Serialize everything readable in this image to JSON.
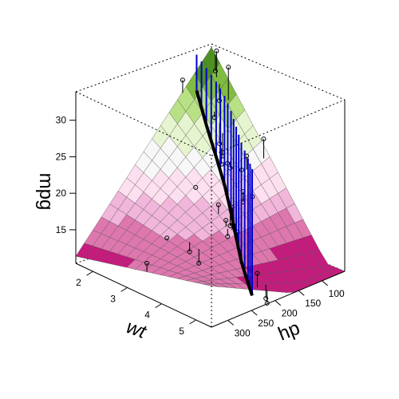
{
  "chart_data": {
    "type": "surface3d",
    "title": "",
    "axes": {
      "x": {
        "label": "wt",
        "ticks": [
          "2",
          "3",
          "4",
          "5"
        ],
        "range": [
          1.5,
          5.45
        ]
      },
      "y": {
        "label": "hp",
        "ticks": [
          "100",
          "150",
          "200",
          "250",
          "300"
        ],
        "range": [
          52,
          335
        ]
      },
      "z": {
        "label": "mpg",
        "ticks": [
          "15",
          "20",
          "25",
          "30"
        ],
        "range": [
          10.4,
          33.9
        ]
      }
    },
    "surface_grid": {
      "rows": 16,
      "cols": 16
    },
    "surface_palette": [
      "#c51b7d",
      "#de77ae",
      "#f1b6da",
      "#fde0ef",
      "#f7f7f7",
      "#e6f5d0",
      "#b8e186",
      "#7fbc41",
      "#4d9221"
    ],
    "line_color": "#000000",
    "drop_line_color": "#0000cc",
    "box": "full",
    "points": [
      {
        "wt": 2.62,
        "hp": 110,
        "mpg": 21.0
      },
      {
        "wt": 2.875,
        "hp": 110,
        "mpg": 21.0
      },
      {
        "wt": 2.32,
        "hp": 93,
        "mpg": 22.8
      },
      {
        "wt": 3.215,
        "hp": 110,
        "mpg": 21.4
      },
      {
        "wt": 3.44,
        "hp": 175,
        "mpg": 18.7
      },
      {
        "wt": 3.46,
        "hp": 105,
        "mpg": 18.1
      },
      {
        "wt": 3.57,
        "hp": 245,
        "mpg": 14.3
      },
      {
        "wt": 3.19,
        "hp": 62,
        "mpg": 24.4
      },
      {
        "wt": 3.15,
        "hp": 95,
        "mpg": 22.8
      },
      {
        "wt": 3.44,
        "hp": 123,
        "mpg": 19.2
      },
      {
        "wt": 3.44,
        "hp": 123,
        "mpg": 17.8
      },
      {
        "wt": 4.07,
        "hp": 180,
        "mpg": 16.4
      },
      {
        "wt": 3.73,
        "hp": 180,
        "mpg": 17.3
      },
      {
        "wt": 3.78,
        "hp": 180,
        "mpg": 15.2
      },
      {
        "wt": 5.25,
        "hp": 205,
        "mpg": 10.4
      },
      {
        "wt": 5.424,
        "hp": 215,
        "mpg": 10.4
      },
      {
        "wt": 5.345,
        "hp": 230,
        "mpg": 14.7
      },
      {
        "wt": 2.2,
        "hp": 66,
        "mpg": 32.4
      },
      {
        "wt": 1.615,
        "hp": 52,
        "mpg": 30.4
      },
      {
        "wt": 1.835,
        "hp": 65,
        "mpg": 33.9
      },
      {
        "wt": 2.465,
        "hp": 97,
        "mpg": 21.5
      },
      {
        "wt": 3.52,
        "hp": 150,
        "mpg": 15.5
      },
      {
        "wt": 3.435,
        "hp": 150,
        "mpg": 15.2
      },
      {
        "wt": 3.84,
        "hp": 245,
        "mpg": 13.3
      },
      {
        "wt": 3.845,
        "hp": 175,
        "mpg": 19.2
      },
      {
        "wt": 1.935,
        "hp": 66,
        "mpg": 27.3
      },
      {
        "wt": 2.14,
        "hp": 91,
        "mpg": 26.0
      },
      {
        "wt": 1.513,
        "hp": 113,
        "mpg": 30.4
      },
      {
        "wt": 3.17,
        "hp": 264,
        "mpg": 15.8
      },
      {
        "wt": 2.77,
        "hp": 175,
        "mpg": 19.7
      },
      {
        "wt": 3.57,
        "hp": 335,
        "mpg": 15.0
      },
      {
        "wt": 2.78,
        "hp": 109,
        "mpg": 21.4
      }
    ],
    "fitted_line": [
      {
        "wt": 1.6,
        "hp": 90,
        "mpg": 28.6
      },
      {
        "wt": 2.1,
        "hp": 105,
        "mpg": 25.2
      },
      {
        "wt": 2.6,
        "hp": 120,
        "mpg": 22.2
      },
      {
        "wt": 3.1,
        "hp": 138,
        "mpg": 19.8
      },
      {
        "wt": 3.6,
        "hp": 160,
        "mpg": 17.6
      },
      {
        "wt": 4.1,
        "hp": 185,
        "mpg": 15.8
      },
      {
        "wt": 4.6,
        "hp": 210,
        "mpg": 14.2
      },
      {
        "wt": 5.1,
        "hp": 232,
        "mpg": 12.9
      },
      {
        "wt": 5.4,
        "hp": 245,
        "mpg": 12.2
      }
    ]
  }
}
